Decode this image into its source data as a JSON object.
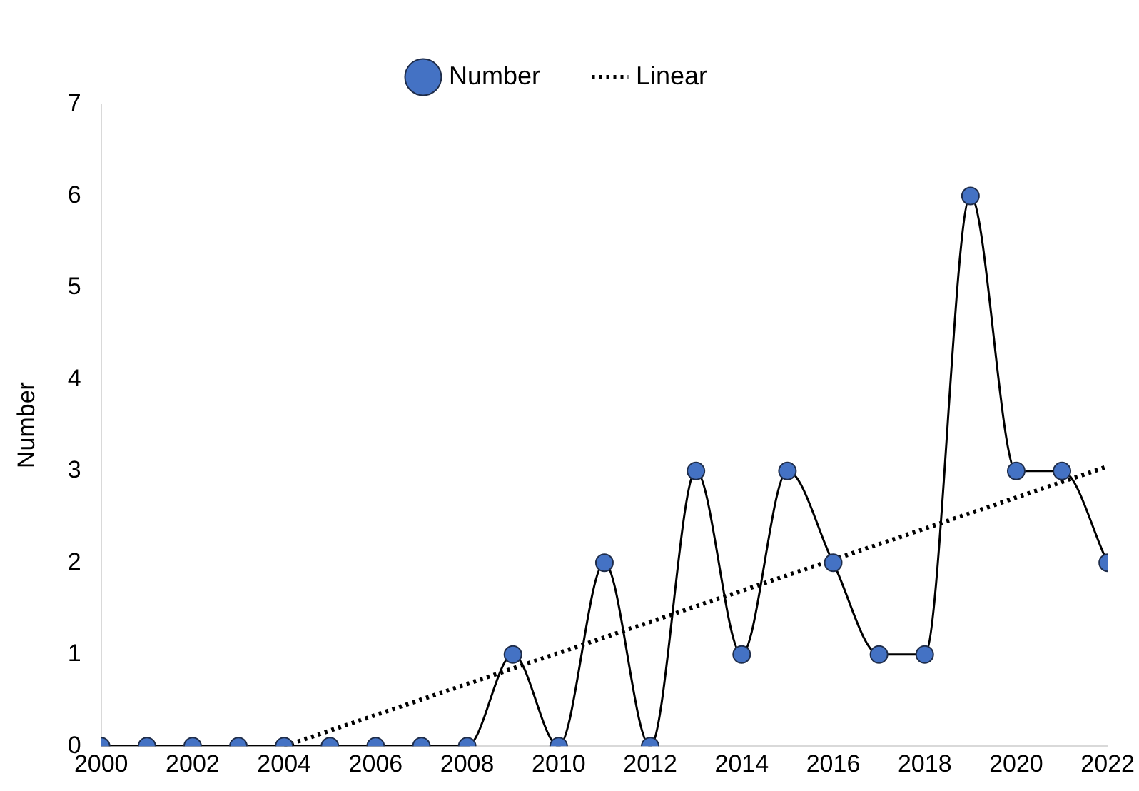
{
  "chart_data": {
    "type": "line",
    "ylabel": "Number",
    "x": [
      2000,
      2001,
      2002,
      2003,
      2004,
      2005,
      2006,
      2007,
      2008,
      2009,
      2010,
      2011,
      2012,
      2013,
      2014,
      2015,
      2016,
      2017,
      2018,
      2019,
      2020,
      2021,
      2022
    ],
    "series": [
      {
        "name": "Number",
        "color": "#4472c4",
        "marker": "circle",
        "line_style": "solid",
        "values": [
          0,
          0,
          0,
          0,
          0,
          0,
          0,
          0,
          0,
          1,
          0,
          2,
          0,
          3,
          1,
          3,
          2,
          1,
          1,
          6,
          3,
          3,
          2
        ]
      },
      {
        "name": "Linear",
        "type": "line",
        "color": "#000000",
        "marker": "none",
        "line_style": "dotted",
        "x": [
          2004,
          2022
        ],
        "values": [
          0,
          3.05
        ]
      }
    ],
    "xlim": [
      2000,
      2022
    ],
    "xticks": [
      2000,
      2002,
      2004,
      2006,
      2008,
      2010,
      2012,
      2014,
      2016,
      2018,
      2020,
      2022
    ],
    "ylim": [
      0,
      7
    ],
    "yticks": [
      0,
      1,
      2,
      3,
      4,
      5,
      6,
      7
    ],
    "grid": false,
    "legend": "top"
  }
}
